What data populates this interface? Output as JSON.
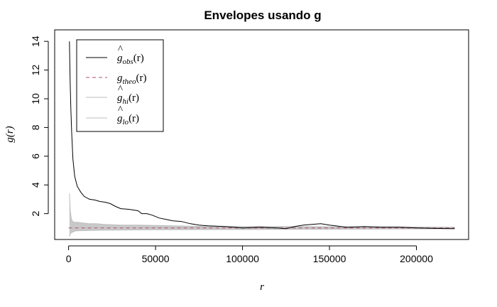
{
  "chart_data": {
    "type": "line",
    "title": "Envelopes usando g",
    "xlabel": "r",
    "ylabel": "g(r)",
    "xlim": [
      -8000,
      230000
    ],
    "ylim": [
      0.2,
      14.8
    ],
    "xticks": [
      0,
      50000,
      100000,
      150000,
      200000
    ],
    "yticks": [
      2,
      4,
      6,
      8,
      10,
      12,
      14
    ],
    "grid": false,
    "legend_position": "top-left",
    "legend": [
      {
        "base": "g",
        "hat": true,
        "sub": "obs",
        "arg": "(r)",
        "color": "#000000",
        "dash": "none"
      },
      {
        "base": "g",
        "hat": false,
        "sub": "theo",
        "arg": "(r)",
        "color": "#b0506a",
        "dash": "5,4"
      },
      {
        "base": "g",
        "hat": true,
        "sub": "hi",
        "arg": "(r)",
        "color": "#bebebe",
        "dash": "none"
      },
      {
        "base": "g",
        "hat": true,
        "sub": "lo",
        "arg": "(r)",
        "color": "#bebebe",
        "dash": "none"
      }
    ],
    "series": [
      {
        "name": "obs",
        "color": "#000000",
        "x": [
          500,
          900,
          1300,
          1800,
          2500,
          3500,
          5000,
          7000,
          9000,
          12000,
          15000,
          18000,
          21000,
          24000,
          27000,
          30000,
          35000,
          40000,
          42000,
          45000,
          48000,
          52000,
          56000,
          60000,
          65000,
          70000,
          75000,
          80000,
          90000,
          100000,
          110000,
          120000,
          125000,
          130000,
          135000,
          140000,
          145000,
          150000,
          160000,
          170000,
          180000,
          190000,
          200000,
          210000,
          222000
        ],
        "y": [
          14.0,
          11.2,
          9.3,
          7.6,
          5.8,
          4.6,
          3.9,
          3.5,
          3.2,
          3.0,
          2.95,
          2.85,
          2.8,
          2.7,
          2.5,
          2.35,
          2.3,
          2.2,
          2.0,
          2.0,
          1.9,
          1.7,
          1.6,
          1.5,
          1.45,
          1.3,
          1.2,
          1.15,
          1.1,
          1.0,
          1.05,
          1.0,
          0.95,
          1.1,
          1.2,
          1.25,
          1.3,
          1.2,
          1.05,
          1.1,
          1.05,
          1.05,
          1.0,
          0.97,
          0.95
        ]
      },
      {
        "name": "theo",
        "color": "#b0506a",
        "x": [
          0,
          222000
        ],
        "y": [
          1.0,
          1.0
        ]
      },
      {
        "name": "hi",
        "color": "#bebebe",
        "x": [
          500,
          1000,
          1500,
          2000,
          3000,
          5000,
          8000,
          12000,
          16000,
          20000,
          30000,
          40000,
          60000,
          80000,
          100000,
          130000,
          160000,
          190000,
          222000
        ],
        "y": [
          3.4,
          2.2,
          1.7,
          1.5,
          1.4,
          1.4,
          1.35,
          1.3,
          1.3,
          1.25,
          1.2,
          1.2,
          1.15,
          1.1,
          1.1,
          1.1,
          1.08,
          1.08,
          1.05
        ]
      },
      {
        "name": "lo",
        "color": "#bebebe",
        "x": [
          500,
          1000,
          2000,
          4000,
          8000,
          20000,
          50000,
          100000,
          150000,
          222000
        ],
        "y": [
          0.4,
          0.6,
          0.7,
          0.8,
          0.82,
          0.85,
          0.88,
          0.9,
          0.92,
          0.95
        ]
      }
    ]
  }
}
